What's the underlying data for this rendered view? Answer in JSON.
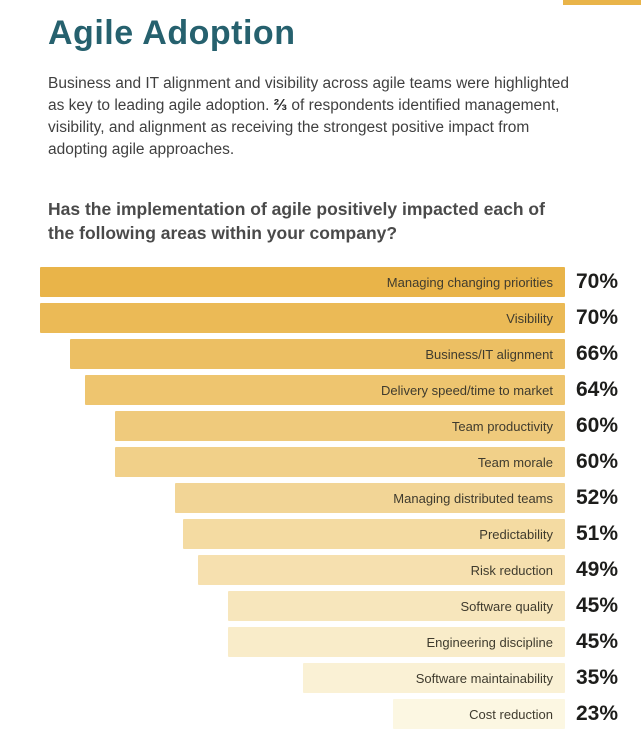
{
  "colors": {
    "background": "#FFFFFF",
    "accent": "#E9B449",
    "title": "#26616E",
    "text": "#404040",
    "question": "#4A4A4A",
    "value": "#1D1D1B",
    "bar_label": "#3F3B2E"
  },
  "page": {
    "title": "Agile Adoption",
    "intro_before": "Business and IT alignment and visibility across agile teams were highlighted as key to leading agile adoption. ",
    "intro_fraction": "⅔",
    "intro_after": " of respondents identified management, visibility, and alignment as receiving the strongest positive impact from adopting agile approaches.",
    "question": "Has the implementation of agile positively impacted each of the following areas within your company?"
  },
  "chart_data": {
    "type": "bar",
    "orientation": "horizontal",
    "title": "Has the implementation of agile positively impacted each of the following areas within your company?",
    "categories": [
      "Managing changing priorities",
      "Visibility",
      "Business/IT alignment",
      "Delivery speed/time to market",
      "Team productivity",
      "Team morale",
      "Managing distributed teams",
      "Predictability",
      "Risk reduction",
      "Software quality",
      "Engineering discipline",
      "Software maintainability",
      "Cost reduction"
    ],
    "values": [
      70,
      70,
      66,
      64,
      60,
      60,
      52,
      51,
      49,
      45,
      45,
      35,
      23
    ],
    "value_suffix": "%",
    "xlim": [
      0,
      70
    ],
    "grid": false,
    "legend": false,
    "bars_aligned": "right",
    "category_label_position": "inside-bar-right",
    "value_label_position": "right-of-bar",
    "bar_colors": [
      "#E9B449",
      "#EBBA56",
      "#ECBF63",
      "#EEC56F",
      "#EFCA7C",
      "#F1D089",
      "#F2D596",
      "#F4DBA2",
      "#F6E0AF",
      "#F7E6BC",
      "#F9ECC9",
      "#FAF1D5",
      "#FCF7E2"
    ]
  }
}
